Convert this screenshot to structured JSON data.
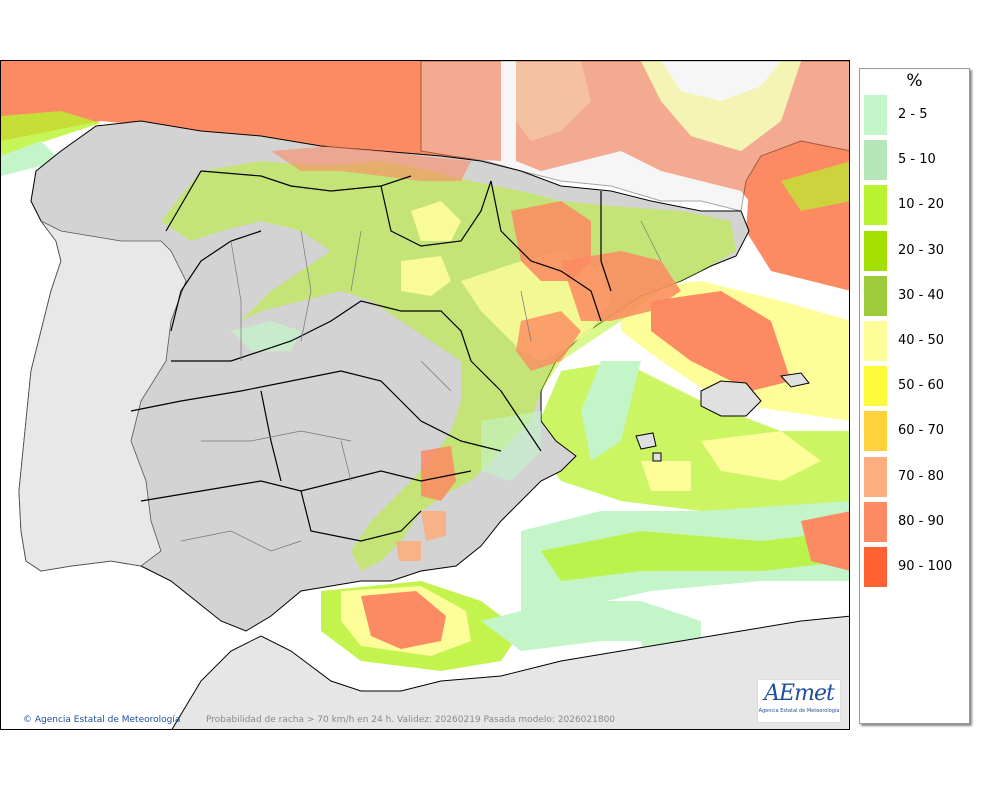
{
  "legend": {
    "unit": "%",
    "items": [
      {
        "label": "2 - 5",
        "color": "#c3f5c8"
      },
      {
        "label": "5 - 10",
        "color": "#b7e6b8"
      },
      {
        "label": "10 - 20",
        "color": "#b9f22e"
      },
      {
        "label": "20 - 30",
        "color": "#a3e000"
      },
      {
        "label": "30 - 40",
        "color": "#9ccc3c"
      },
      {
        "label": "40 - 50",
        "color": "#fdfd9a"
      },
      {
        "label": "50 - 60",
        "color": "#fbfb3c"
      },
      {
        "label": "60 - 70",
        "color": "#fed23c"
      },
      {
        "label": "70 - 80",
        "color": "#fcae7f"
      },
      {
        "label": "80 - 90",
        "color": "#fc8a62"
      },
      {
        "label": "90 - 100",
        "color": "#fe6132"
      }
    ]
  },
  "map": {
    "copyright": "© Agencia Estatal de Meteorología",
    "caption": "Probabilidad de racha > 70 km/h en 24 h. Validez: 20260219 Pasada modelo: 2026021800",
    "logo_text": "AEmet",
    "logo_subtitle": "Agencia Estatal de Meteorología"
  }
}
